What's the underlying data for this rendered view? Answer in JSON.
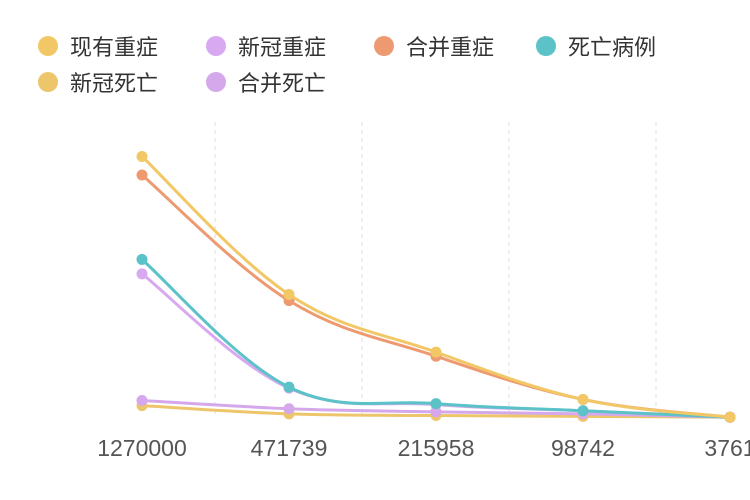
{
  "chart_data": {
    "type": "line",
    "categories": [
      "1270000",
      "471739",
      "215958",
      "98742",
      "3761"
    ],
    "series": [
      {
        "name": "现有重症",
        "color": "#F2C766",
        "values": [
          1270000,
          600000,
          320000,
          90000,
          3761
        ]
      },
      {
        "name": "新冠重症",
        "color": "#D8A8F0",
        "values": [
          700000,
          145000,
          65000,
          35000,
          3761
        ]
      },
      {
        "name": "合并重症",
        "color": "#EE9A70",
        "values": [
          1180000,
          570000,
          300000,
          90000,
          3761
        ]
      },
      {
        "name": "死亡病例",
        "color": "#5BC3C8",
        "values": [
          770000,
          150000,
          70000,
          35000,
          3761
        ]
      },
      {
        "name": "新冠死亡",
        "color": "#EDC66B",
        "values": [
          60000,
          20000,
          12000,
          8000,
          3761
        ]
      },
      {
        "name": "合并死亡",
        "color": "#D4A8EA",
        "values": [
          85000,
          45000,
          30000,
          20000,
          3761
        ]
      }
    ],
    "ylim": [
      0,
      1350000
    ],
    "grid": "vertical dashed",
    "legend_position": "top-left"
  }
}
